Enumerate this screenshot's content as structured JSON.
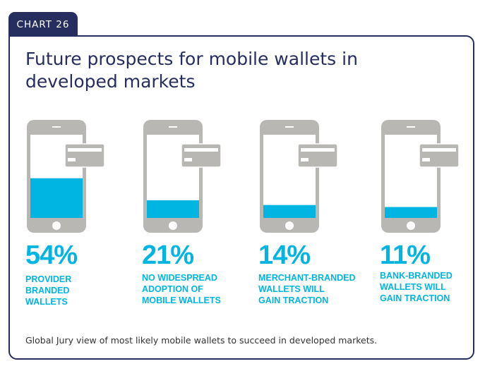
{
  "tab_label": "CHART 26",
  "title": "Future prospects for mobile wallets in developed markets",
  "footnote": "Global Jury view of most likely mobile wallets to succeed in developed markets.",
  "colors": {
    "navy": "#252e5e",
    "accent": "#00b5e2",
    "phone_gray": "#b8b7b3"
  },
  "chart_data": {
    "type": "bar",
    "style": "phone-fill pictogram",
    "categories": [
      "PROVIDER BRANDED WALLETS",
      "NO WIDESPREAD ADOPTION OF MOBILE WALLETS",
      "MERCHANT-BRANDED WALLETS WILL GAIN TRACTION",
      "BANK-BRANDED WALLETS WILL GAIN TRACTION"
    ],
    "values": [
      54,
      21,
      14,
      11
    ],
    "value_labels": [
      "54%",
      "21%",
      "14%",
      "11%"
    ],
    "label_lines": [
      [
        "PROVIDER",
        "BRANDED",
        "WALLETS"
      ],
      [
        "NO WIDESPREAD",
        "ADOPTION OF",
        "MOBILE WALLETS"
      ],
      [
        "MERCHANT-BRANDED",
        "WALLETS WILL",
        "GAIN TRACTION"
      ],
      [
        "BANK-BRANDED",
        "WALLETS WILL",
        "GAIN TRACTION"
      ]
    ],
    "unit": "%"
  }
}
